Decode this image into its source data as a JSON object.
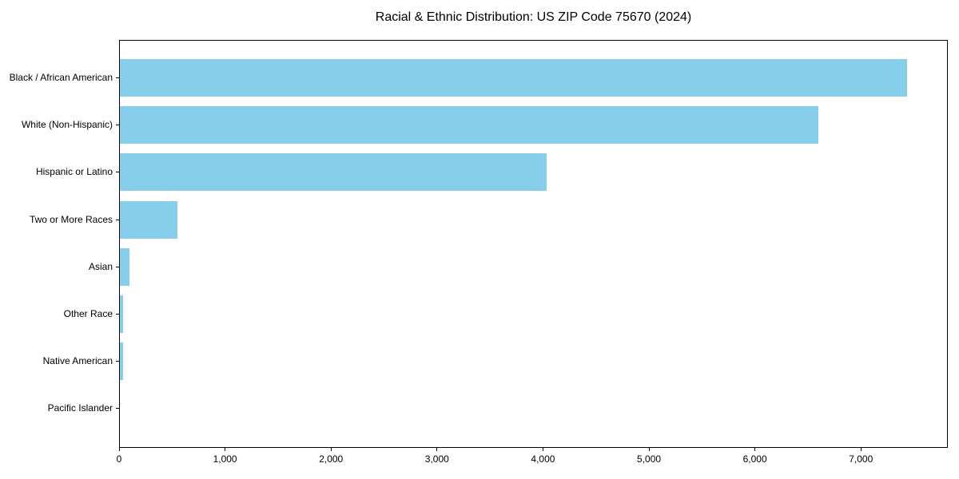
{
  "chart_data": {
    "type": "bar",
    "orientation": "horizontal",
    "title": "Racial & Ethnic Distribution: US ZIP Code 75670 (2024)",
    "categories": [
      "Black / African American",
      "White (Non-Hispanic)",
      "Hispanic or Latino",
      "Two or More Races",
      "Asian",
      "Other Race",
      "Native American",
      "Pacific Islander"
    ],
    "values": [
      7430,
      6590,
      4030,
      540,
      88,
      30,
      28,
      0
    ],
    "xlabel": "",
    "ylabel": "",
    "xlim": [
      0,
      7820
    ],
    "xticks": [
      0,
      1000,
      2000,
      3000,
      4000,
      5000,
      6000,
      7000
    ],
    "xtick_labels": [
      "0",
      "1,000",
      "2,000",
      "3,000",
      "4,000",
      "5,000",
      "6,000",
      "7,000"
    ],
    "bar_color": "#87CEEB",
    "background_color": "#ffffff",
    "axis_color": "#000000",
    "grid": false,
    "legend": "none"
  }
}
